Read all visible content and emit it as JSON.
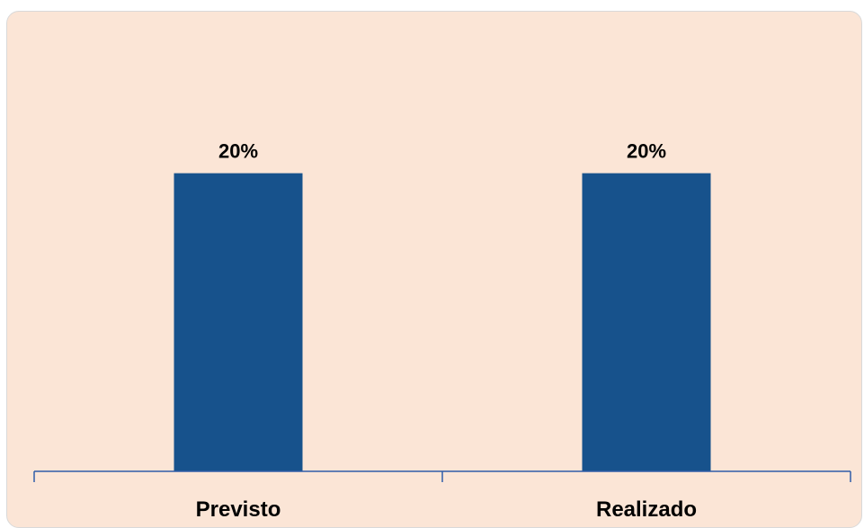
{
  "chart_data": {
    "type": "bar",
    "categories": [
      "Previsto",
      "Realizado"
    ],
    "values": [
      20,
      20
    ],
    "data_labels": [
      "20%",
      "20%"
    ],
    "unit": "%",
    "title": "",
    "xlabel": "",
    "ylabel": "",
    "ylim": [
      0,
      24.5
    ],
    "grid": false,
    "legend": "none",
    "colors": {
      "bar": "#17528c",
      "axis": "#2f5da8",
      "background": "#fbe5d6",
      "border": "#d9d9d9"
    }
  }
}
